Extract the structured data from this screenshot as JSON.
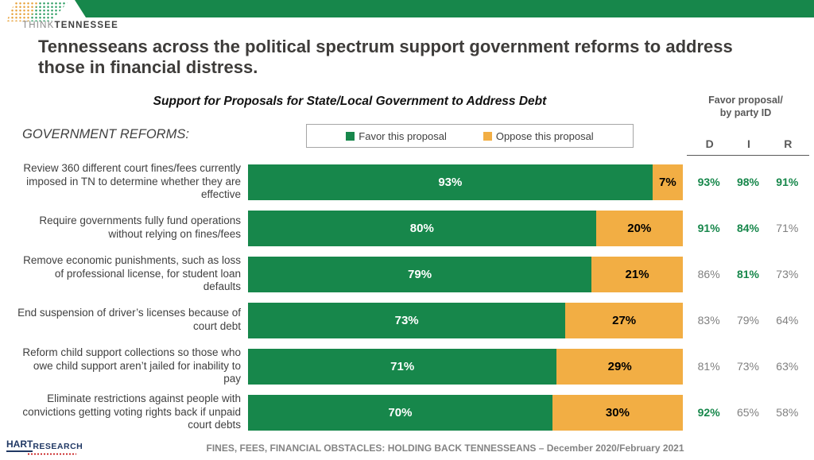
{
  "brand": {
    "think": "THINK",
    "tennessee": "TENNESSEE"
  },
  "title": "Tennesseans across the political spectrum support government reforms to address those in financial distress.",
  "chart": {
    "subtitle": "Support for Proposals for State/Local Government to Address Debt",
    "section_label": "GOVERNMENT REFORMS:",
    "legend": {
      "favor": "Favor this proposal",
      "oppose": "Oppose this proposal"
    },
    "party_header": {
      "line1": "Favor proposal/",
      "line2": "by party ID"
    }
  },
  "chart_data": {
    "type": "bar",
    "orientation": "horizontal-stacked",
    "title": "Support for Proposals for State/Local Government to Address Debt",
    "xlim": [
      0,
      100
    ],
    "legend_position": "top",
    "categories": [
      "Review 360 different court fines/fees currently imposed in TN to determine whether they are effective",
      "Require governments fully fund operations without relying on fines/fees",
      "Remove economic punishments, such as loss of professional license, for student loan defaults",
      "End suspension of driver’s licenses because of court debt",
      "Reform child support collections so those who owe child support aren’t jailed for inability to pay",
      "Eliminate restrictions against people with convictions getting voting rights back if unpaid court debts"
    ],
    "series": [
      {
        "name": "Favor this proposal",
        "color": "#17874B",
        "values": [
          93,
          80,
          79,
          73,
          71,
          70
        ]
      },
      {
        "name": "Oppose this proposal",
        "color": "#F2AE44",
        "values": [
          7,
          20,
          21,
          27,
          29,
          30
        ]
      }
    ],
    "party_id": {
      "columns": [
        "D",
        "I",
        "R"
      ],
      "rows": [
        [
          {
            "value": "93%",
            "highlight": true
          },
          {
            "value": "98%",
            "highlight": true
          },
          {
            "value": "91%",
            "highlight": true
          }
        ],
        [
          {
            "value": "91%",
            "highlight": true
          },
          {
            "value": "84%",
            "highlight": true
          },
          {
            "value": "71%",
            "highlight": false
          }
        ],
        [
          {
            "value": "86%",
            "highlight": false
          },
          {
            "value": "81%",
            "highlight": true
          },
          {
            "value": "73%",
            "highlight": false
          }
        ],
        [
          {
            "value": "83%",
            "highlight": false
          },
          {
            "value": "79%",
            "highlight": false
          },
          {
            "value": "64%",
            "highlight": false
          }
        ],
        [
          {
            "value": "81%",
            "highlight": false
          },
          {
            "value": "73%",
            "highlight": false
          },
          {
            "value": "63%",
            "highlight": false
          }
        ],
        [
          {
            "value": "92%",
            "highlight": true
          },
          {
            "value": "65%",
            "highlight": false
          },
          {
            "value": "58%",
            "highlight": false
          }
        ]
      ]
    }
  },
  "footer": {
    "hart_line1": "HART",
    "hart_line2": "RESEARCH",
    "caption": "FINES, FEES, FINANCIAL OBSTACLES: HOLDING BACK TENNESSEANS – December 2020/February 2021"
  },
  "colors": {
    "green": "#17874B",
    "orange": "#F2AE44",
    "title-gray": "#3e3c3a",
    "party-gray": "#808080"
  }
}
